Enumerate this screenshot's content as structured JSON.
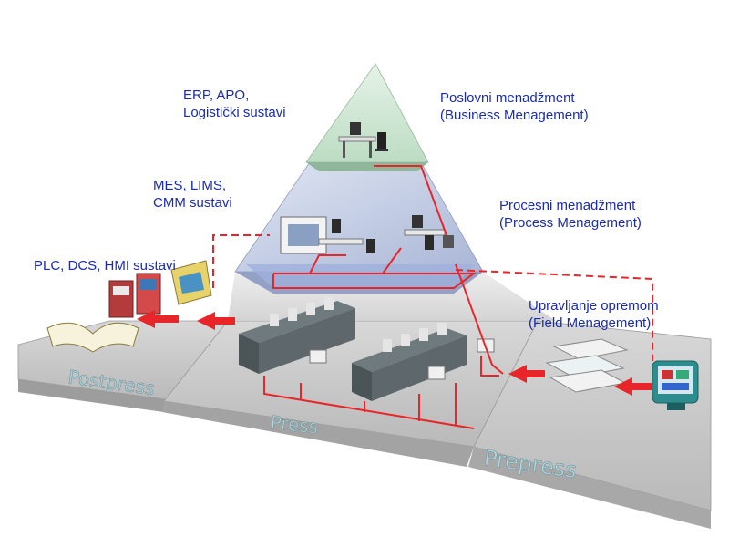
{
  "labels": {
    "top_left_line1": "ERP, APO,",
    "top_left_line2": "Logistički sustavi",
    "top_right_line1": "Poslovni menadžment",
    "top_right_line2": "(Business Menagement)",
    "mid_left_line1": "MES, LIMS,",
    "mid_left_line2": "CMM sustavi",
    "mid_right_line1": "Procesni menadžment",
    "mid_right_line2": "(Process Menagement)",
    "low_left": "PLC, DCS, HMI sustavi",
    "low_right_line1": "Upravljanje opremom",
    "low_right_line2": "(Field Menagement)"
  },
  "zones": {
    "postpress": "Postpress",
    "press": "Press",
    "prepress": "Prepress"
  },
  "colors": {
    "label_text": "#1a2bb0",
    "network_line": "#e8262a",
    "top_level": "#cfe6d4",
    "middle_level": "#b9c3de",
    "floor": "#c9c9c9"
  }
}
